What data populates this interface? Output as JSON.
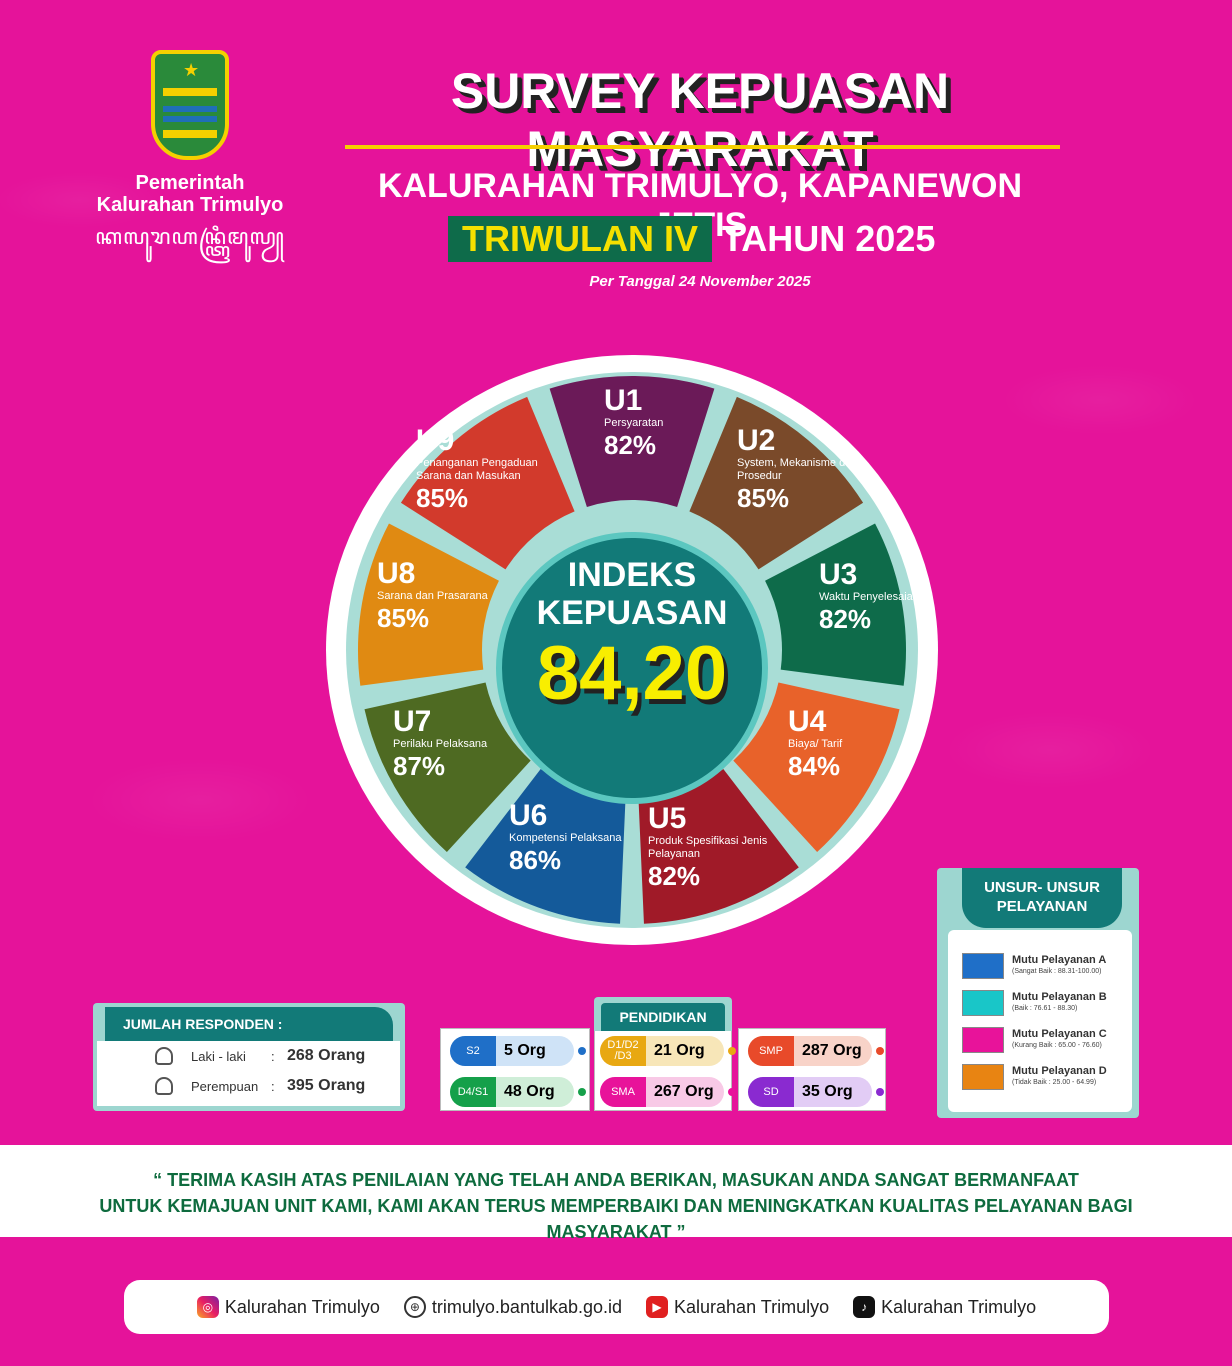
{
  "header": {
    "org_line1": "Pemerintah",
    "org_line2": "Kalurahan Trimulyo",
    "org_javanese": "ꦏꦭꦸꦫꦲꦤ꧀ꦠꦿꦶꦩꦸꦭꦾ",
    "title": "SURVEY KEPUASAN MASYARAKAT",
    "subtitle": "KALURAHAN TRIMULYO, KAPANEWON JETIS",
    "period_badge": "TRIWULAN IV",
    "period_rest": "TAHUN 2025",
    "date_note": "Per Tanggal 24 November 2025"
  },
  "index": {
    "line1": "INDEKS",
    "line2": "KEPUASAN",
    "value": "84,20"
  },
  "segments": [
    {
      "code": "U1",
      "desc": "Persyaratan",
      "pct": "82%",
      "color": "#6b1a58"
    },
    {
      "code": "U2",
      "desc": "System, Mekanisme dan Prosedur",
      "pct": "85%",
      "color": "#7a4a2a"
    },
    {
      "code": "U3",
      "desc": "Waktu Penyelesaian",
      "pct": "82%",
      "color": "#0e6b4a"
    },
    {
      "code": "U4",
      "desc": "Biaya/ Tarif",
      "pct": "84%",
      "color": "#e8622a"
    },
    {
      "code": "U5",
      "desc": "Produk Spesifikasi Jenis Pelayanan",
      "pct": "82%",
      "color": "#a01a28"
    },
    {
      "code": "U6",
      "desc": "Kompetensi Pelaksana",
      "pct": "86%",
      "color": "#145a9a"
    },
    {
      "code": "U7",
      "desc": "Perilaku Pelaksana",
      "pct": "87%",
      "color": "#4e6a22"
    },
    {
      "code": "U8",
      "desc": "Sarana dan Prasarana",
      "pct": "85%",
      "color": "#e08a12"
    },
    {
      "code": "U9",
      "desc": "Penanganan Pengaduan Sarana dan Masukan",
      "pct": "85%",
      "color": "#d23a2c"
    }
  ],
  "legend": {
    "title_line1": "UNSUR- UNSUR",
    "title_line2": "PELAYANAN",
    "items": [
      {
        "name": "Mutu Pelayanan A",
        "range": "(Sangat Baik : 88.31-100.00)",
        "color": "#1f6fc8"
      },
      {
        "name": "Mutu Pelayanan B",
        "range": "(Baik : 76.61 - 88.30)",
        "color": "#19c6c8"
      },
      {
        "name": "Mutu Pelayanan C",
        "range": "(Kurang Baik : 65.00 - 76.60)",
        "color": "#e8139a"
      },
      {
        "name": "Mutu Pelayanan D",
        "range": "(Tidak Baik : 25.00 - 64.99)",
        "color": "#e88412"
      }
    ]
  },
  "respondents": {
    "title": "JUMLAH RESPONDEN :",
    "male_label": "Laki - laki",
    "male_sep": ":",
    "male_value": "268 Orang",
    "female_label": "Perempuan",
    "female_sep": ":",
    "female_value": "395 Orang"
  },
  "education": {
    "title": "PENDIDIKAN",
    "items": [
      {
        "code": "S2",
        "value": "5 Org",
        "color": "#1f6fc8",
        "light": "#cfe3f7"
      },
      {
        "code": "D4/S1",
        "value": "48 Org",
        "color": "#15a04a",
        "light": "#cfeed8"
      },
      {
        "code": "D1/D2 /D3",
        "value": "21 Org",
        "color": "#e8a812",
        "light": "#f7e6b8"
      },
      {
        "code": "SMA",
        "value": "267 Org",
        "color": "#e8139a",
        "light": "#f8c9e6"
      },
      {
        "code": "SMP",
        "value": "287 Org",
        "color": "#e84a2a",
        "light": "#f8d3c8"
      },
      {
        "code": "SD",
        "value": "35 Org",
        "color": "#8a2ad0",
        "light": "#e2ccf5"
      }
    ]
  },
  "thanks": {
    "line1": "“ TERIMA KASIH ATAS PENILAIAN YANG TELAH ANDA BERIKAN, MASUKAN ANDA SANGAT BERMANFAAT",
    "line2": "UNTUK KEMAJUAN UNIT KAMI, KAMI AKAN TERUS MEMPERBAIKI DAN MENINGKATKAN KUALITAS PELAYANAN BAGI MASYARAKAT ”"
  },
  "footer": [
    {
      "icon": "instagram-icon",
      "text": "Kalurahan Trimulyo"
    },
    {
      "icon": "globe-icon",
      "text": "trimulyo.bantulkab.go.id"
    },
    {
      "icon": "youtube-icon",
      "text": "Kalurahan Trimulyo"
    },
    {
      "icon": "tiktok-icon",
      "text": "Kalurahan Trimulyo"
    }
  ]
}
